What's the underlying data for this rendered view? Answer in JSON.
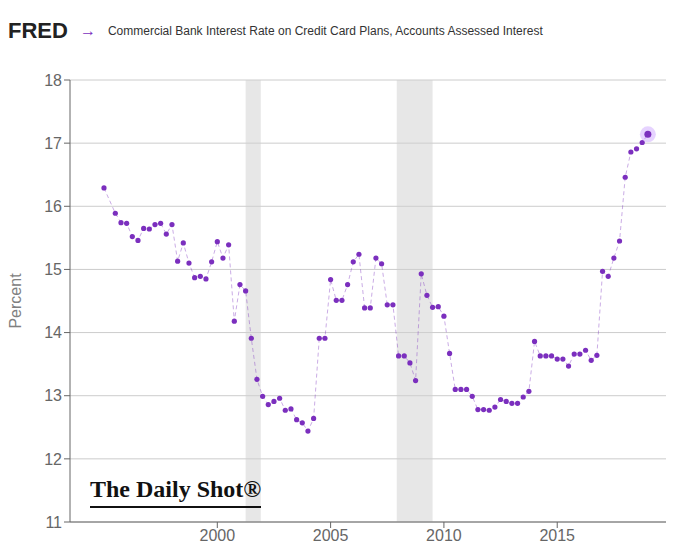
{
  "chart_data": {
    "type": "scatter",
    "title": "Commercial Bank Interest Rate on Credit Card Plans, Accounts Assessed Interest",
    "ylabel": "Percent",
    "annotations": [
      "FRED",
      "→",
      "The Daily Shot®"
    ],
    "x": [
      1995.0,
      1995.5,
      1995.75,
      1996.0,
      1996.25,
      1996.5,
      1996.75,
      1997.0,
      1997.25,
      1997.5,
      1997.75,
      1998.0,
      1998.25,
      1998.5,
      1998.75,
      1999.0,
      1999.25,
      1999.5,
      1999.75,
      2000.0,
      2000.25,
      2000.5,
      2000.75,
      2001.0,
      2001.25,
      2001.5,
      2001.75,
      2002.0,
      2002.25,
      2002.5,
      2002.75,
      2003.0,
      2003.25,
      2003.5,
      2003.75,
      2004.0,
      2004.25,
      2004.5,
      2004.75,
      2005.0,
      2005.25,
      2005.5,
      2005.75,
      2006.0,
      2006.25,
      2006.5,
      2006.75,
      2007.0,
      2007.25,
      2007.5,
      2007.75,
      2008.0,
      2008.25,
      2008.5,
      2008.75,
      2009.0,
      2009.25,
      2009.5,
      2009.75,
      2010.0,
      2010.25,
      2010.5,
      2010.75,
      2011.0,
      2011.25,
      2011.5,
      2011.75,
      2012.0,
      2012.25,
      2012.5,
      2012.75,
      2013.0,
      2013.25,
      2013.5,
      2013.75,
      2014.0,
      2014.25,
      2014.5,
      2014.75,
      2015.0,
      2015.25,
      2015.5,
      2015.75,
      2016.0,
      2016.25,
      2016.5,
      2016.75,
      2017.0,
      2017.25,
      2017.5,
      2017.75,
      2018.0,
      2018.25,
      2018.5,
      2018.75,
      2019.0
    ],
    "values": [
      16.29,
      15.89,
      15.74,
      15.73,
      15.52,
      15.46,
      15.65,
      15.64,
      15.71,
      15.73,
      15.56,
      15.71,
      15.13,
      15.42,
      15.1,
      14.87,
      14.89,
      14.85,
      15.12,
      15.44,
      15.18,
      15.39,
      14.18,
      14.76,
      14.66,
      13.91,
      13.26,
      12.99,
      12.86,
      12.91,
      12.96,
      12.77,
      12.79,
      12.62,
      12.57,
      12.44,
      12.64,
      13.91,
      13.91,
      14.84,
      14.51,
      14.51,
      14.76,
      15.12,
      15.24,
      14.39,
      14.39,
      15.18,
      15.09,
      14.44,
      14.44,
      13.63,
      13.63,
      13.52,
      13.24,
      14.93,
      14.59,
      14.4,
      14.41,
      14.26,
      13.67,
      13.1,
      13.1,
      13.1,
      12.99,
      12.78,
      12.78,
      12.77,
      12.82,
      12.94,
      12.91,
      12.88,
      12.88,
      12.98,
      13.07,
      13.86,
      13.63,
      13.63,
      13.63,
      13.58,
      13.58,
      13.47,
      13.66,
      13.66,
      13.72,
      13.56,
      13.64,
      14.97,
      14.89,
      15.18,
      15.45,
      16.46,
      16.86,
      16.91,
      17.01,
      17.14
    ],
    "color": "#7B2FBE",
    "marker": "circle",
    "line_style": "dashed",
    "recessions": [
      {
        "x": [
          2001.25,
          2001.92
        ],
        "color": "#d0d0d0"
      },
      {
        "x": [
          2007.92,
          2009.5
        ],
        "color": "#d0d0d0"
      }
    ],
    "xlim": [
      1993.5,
      2019.8
    ],
    "xticks": [
      2000,
      2005,
      2010,
      2015
    ],
    "ylim": [
      11,
      18
    ],
    "yticks": [
      11,
      12,
      13,
      14,
      15,
      16,
      17,
      18
    ],
    "grid": true
  }
}
